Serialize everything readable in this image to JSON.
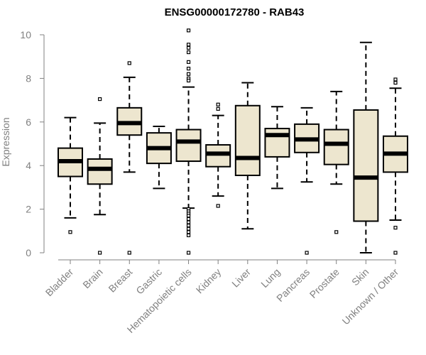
{
  "chart_data": {
    "type": "boxplot",
    "title": "ENSG00000172780 - RAB43",
    "xlabel": "",
    "ylabel": "Expression",
    "ylim": [
      0,
      10
    ],
    "yticks": [
      0,
      2,
      4,
      6,
      8,
      10
    ],
    "box_fill": "#ede6cf",
    "categories": [
      "Bladder",
      "Brain",
      "Breast",
      "Gastric",
      "Hematopoietic cells",
      "Kidney",
      "Liver",
      "Lung",
      "Pancreas",
      "Prostate",
      "Skin",
      "Unknown / Other"
    ],
    "series": [
      {
        "name": "Bladder",
        "whisker_low": 1.6,
        "q1": 3.5,
        "median": 4.2,
        "q3": 4.8,
        "whisker_high": 6.2,
        "outliers": [
          0.95
        ]
      },
      {
        "name": "Brain",
        "whisker_low": 1.75,
        "q1": 3.15,
        "median": 3.85,
        "q3": 4.3,
        "whisker_high": 5.95,
        "outliers": [
          7.05,
          0.0
        ]
      },
      {
        "name": "Breast",
        "whisker_low": 3.7,
        "q1": 5.4,
        "median": 5.95,
        "q3": 6.65,
        "whisker_high": 8.05,
        "outliers": [
          8.7,
          0.0
        ]
      },
      {
        "name": "Gastric",
        "whisker_low": 2.95,
        "q1": 4.1,
        "median": 4.8,
        "q3": 5.5,
        "whisker_high": 5.8,
        "outliers": []
      },
      {
        "name": "Hematopoietic cells",
        "whisker_low": 2.05,
        "q1": 4.2,
        "median": 5.1,
        "q3": 5.65,
        "whisker_high": 7.6,
        "outliers": [
          10.2,
          9.55,
          9.4,
          9.2,
          8.75,
          8.45,
          8.2,
          8.0,
          7.9,
          2.0,
          1.9,
          1.8,
          1.7,
          1.55,
          1.4,
          1.25,
          1.1,
          0.95,
          0.8,
          0.0
        ]
      },
      {
        "name": "Kidney",
        "whisker_low": 2.6,
        "q1": 3.95,
        "median": 4.55,
        "q3": 4.95,
        "whisker_high": 6.3,
        "outliers": [
          6.8,
          6.6,
          2.15
        ]
      },
      {
        "name": "Liver",
        "whisker_low": 1.1,
        "q1": 3.55,
        "median": 4.35,
        "q3": 6.75,
        "whisker_high": 7.8,
        "outliers": []
      },
      {
        "name": "Lung",
        "whisker_low": 2.95,
        "q1": 4.4,
        "median": 5.4,
        "q3": 5.7,
        "whisker_high": 6.7,
        "outliers": []
      },
      {
        "name": "Pancreas",
        "whisker_low": 3.25,
        "q1": 4.6,
        "median": 5.2,
        "q3": 5.9,
        "whisker_high": 6.65,
        "outliers": [
          0.0
        ]
      },
      {
        "name": "Prostate",
        "whisker_low": 3.15,
        "q1": 4.05,
        "median": 5.0,
        "q3": 5.65,
        "whisker_high": 7.4,
        "outliers": [
          0.95
        ]
      },
      {
        "name": "Skin",
        "whisker_low": 0.0,
        "q1": 1.45,
        "median": 3.45,
        "q3": 6.55,
        "whisker_high": 9.65,
        "outliers": []
      },
      {
        "name": "Unknown / Other",
        "whisker_low": 1.5,
        "q1": 3.7,
        "median": 4.55,
        "q3": 5.35,
        "whisker_high": 7.55,
        "outliers": [
          7.95,
          7.8,
          1.15,
          0.0
        ]
      }
    ]
  }
}
